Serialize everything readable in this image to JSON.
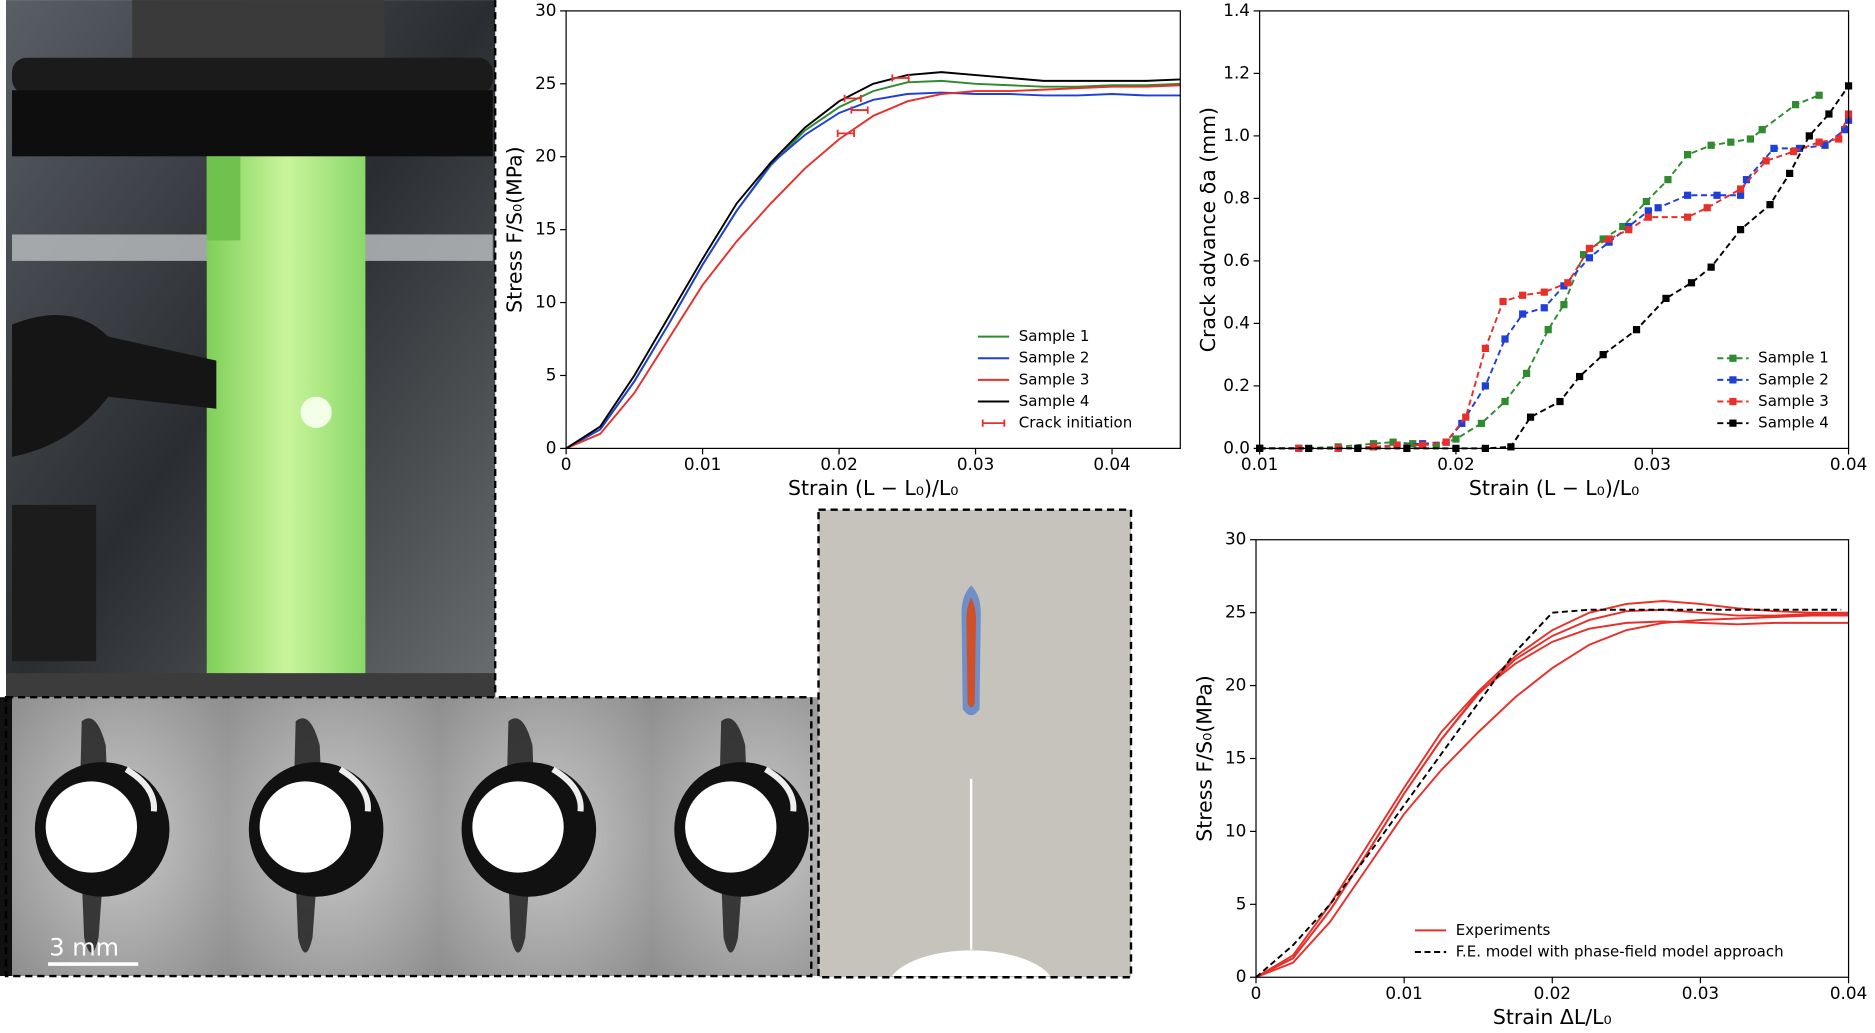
{
  "chart_data": [
    {
      "type": "line",
      "x_label": "Strain (L − L₀)/L₀",
      "y_label": "Stress F/S₀(MPa)",
      "x": [
        0,
        0.0025,
        0.005,
        0.0075,
        0.01,
        0.0125,
        0.015,
        0.0175,
        0.02,
        0.0225,
        0.025,
        0.0275,
        0.03,
        0.0325,
        0.035,
        0.0375,
        0.04,
        0.0425,
        0.045
      ],
      "series": [
        {
          "name": "Sample 1",
          "color": "#2e8b2e",
          "values": [
            0,
            1.3,
            4.6,
            8.5,
            12.6,
            16.3,
            19.4,
            21.8,
            23.4,
            24.5,
            25.1,
            25.2,
            25.0,
            24.9,
            24.8,
            24.8,
            24.9,
            24.9,
            25.0
          ]
        },
        {
          "name": "Sample 2",
          "color": "#1f3fd8",
          "values": [
            0,
            1.3,
            4.6,
            8.5,
            12.6,
            16.3,
            19.5,
            21.5,
            23.0,
            23.9,
            24.3,
            24.4,
            24.3,
            24.3,
            24.2,
            24.2,
            24.3,
            24.2,
            24.2
          ]
        },
        {
          "name": "Sample 3",
          "color": "#e8302a",
          "values": [
            0,
            1.0,
            3.8,
            7.5,
            11.2,
            14.2,
            16.8,
            19.2,
            21.2,
            22.8,
            23.8,
            24.3,
            24.5,
            24.5,
            24.6,
            24.7,
            24.8,
            24.8,
            24.9
          ]
        },
        {
          "name": "Sample 4",
          "color": "#000000",
          "values": [
            0,
            1.5,
            5,
            9,
            13,
            16.8,
            19.6,
            22,
            23.8,
            25,
            25.6,
            25.8,
            25.6,
            25.4,
            25.2,
            25.2,
            25.2,
            25.2,
            25.3
          ]
        }
      ],
      "errorbars": {
        "name": "Crack initiation",
        "color": "#e8302a",
        "x": [
          0.021,
          0.0245,
          0.0215,
          0.0205
        ],
        "values": [
          24.0,
          25.4,
          23.2,
          21.6
        ],
        "xerr": [
          0.0006,
          0.0006,
          0.0006,
          0.0006
        ]
      },
      "xlim": [
        0,
        0.045
      ],
      "xticks": [
        0,
        0.01,
        0.02,
        0.03,
        0.04
      ],
      "ylim": [
        0,
        30
      ],
      "yticks": [
        0,
        5,
        10,
        15,
        20,
        25,
        30
      ],
      "legend": "lower right"
    },
    {
      "type": "line",
      "x_label": "Strain (L − L₀)/L₀",
      "y_label": "Crack advance δa (mm)",
      "series": [
        {
          "name": "Sample 1",
          "color": "#2e8b2e",
          "linestyle": "dashed",
          "marker": "s",
          "x": [
            0.01,
            0.012,
            0.014,
            0.0158,
            0.0168,
            0.0178,
            0.019,
            0.02,
            0.0213,
            0.0225,
            0.0236,
            0.0247,
            0.0255,
            0.0265,
            0.0275,
            0.0285,
            0.0297,
            0.0308,
            0.0318,
            0.033,
            0.034,
            0.035,
            0.0356,
            0.0373,
            0.0385
          ],
          "values": [
            0,
            0,
            0.005,
            0.015,
            0.02,
            0.015,
            0.01,
            0.03,
            0.08,
            0.15,
            0.24,
            0.38,
            0.46,
            0.62,
            0.67,
            0.71,
            0.79,
            0.86,
            0.94,
            0.97,
            0.98,
            0.99,
            1.02,
            1.1,
            1.13
          ]
        },
        {
          "name": "Sample 2",
          "color": "#1f3fd8",
          "linestyle": "dashed",
          "marker": "s",
          "x": [
            0.01,
            0.012,
            0.014,
            0.0158,
            0.017,
            0.0183,
            0.0195,
            0.0203,
            0.0215,
            0.0225,
            0.0234,
            0.0245,
            0.0255,
            0.0268,
            0.0278,
            0.0288,
            0.0298,
            0.0303,
            0.0318,
            0.0333,
            0.0345,
            0.0348,
            0.0362,
            0.0375,
            0.0388,
            0.0398,
            0.04
          ],
          "values": [
            0,
            0,
            0,
            0.005,
            0.01,
            0.015,
            0.02,
            0.08,
            0.2,
            0.35,
            0.43,
            0.45,
            0.52,
            0.61,
            0.66,
            0.71,
            0.76,
            0.77,
            0.81,
            0.81,
            0.81,
            0.86,
            0.96,
            0.96,
            0.97,
            1.02,
            1.05
          ]
        },
        {
          "name": "Sample 3",
          "color": "#e8302a",
          "linestyle": "dashed",
          "marker": "s",
          "x": [
            0.01,
            0.012,
            0.014,
            0.0158,
            0.017,
            0.0183,
            0.0195,
            0.0205,
            0.0215,
            0.0224,
            0.0234,
            0.0245,
            0.0257,
            0.0268,
            0.0278,
            0.0288,
            0.0298,
            0.0318,
            0.0328,
            0.0345,
            0.0358,
            0.0372,
            0.0385,
            0.0395,
            0.04
          ],
          "values": [
            0,
            0,
            0,
            0.005,
            0.01,
            0.01,
            0.02,
            0.1,
            0.32,
            0.47,
            0.49,
            0.5,
            0.53,
            0.64,
            0.67,
            0.7,
            0.74,
            0.74,
            0.77,
            0.83,
            0.92,
            0.95,
            0.98,
            0.99,
            1.07
          ]
        },
        {
          "name": "Sample 4",
          "color": "#000000",
          "linestyle": "dashed",
          "marker": "s",
          "x": [
            0.01,
            0.0125,
            0.015,
            0.0175,
            0.02,
            0.0215,
            0.0228,
            0.0238,
            0.0253,
            0.0263,
            0.0275,
            0.0292,
            0.0307,
            0.032,
            0.033,
            0.0345,
            0.036,
            0.037,
            0.038,
            0.039,
            0.04
          ],
          "values": [
            0,
            0,
            0,
            0,
            0,
            0,
            0.005,
            0.1,
            0.15,
            0.23,
            0.3,
            0.38,
            0.48,
            0.53,
            0.58,
            0.7,
            0.78,
            0.88,
            1.0,
            1.07,
            1.16
          ]
        }
      ],
      "xlim": [
        0.01,
        0.04
      ],
      "xticks": [
        0.01,
        0.02,
        0.03,
        0.04
      ],
      "ylim": [
        0,
        1.4
      ],
      "yticks": [
        {
          "value": 0,
          "label": "0.0"
        },
        0.2,
        0.4,
        0.6,
        0.8,
        {
          "value": 1,
          "label": "1.0"
        },
        1.2,
        1.4
      ],
      "legend": "lower right"
    },
    {
      "type": "line",
      "x_label": "Strain ΔL/L₀",
      "y_label": "Stress F/S₀(MPa)",
      "series": [
        {
          "name": "Experiments",
          "color": "#e8302a",
          "x": [
            0,
            0.0025,
            0.005,
            0.0075,
            0.01,
            0.0125,
            0.015,
            0.0175,
            0.02,
            0.0225,
            0.025,
            0.0275,
            0.03,
            0.0325,
            0.035,
            0.0375,
            0.04
          ],
          "values": [
            [
              0,
              1.5,
              5,
              9,
              13,
              16.8,
              19.6,
              22,
              23.8,
              25,
              25.6,
              25.8,
              25.6,
              25.3,
              25.1,
              25.0,
              25.0
            ],
            [
              0,
              1.3,
              4.6,
              8.5,
              12.6,
              16.3,
              19.4,
              21.8,
              23.4,
              24.5,
              25.1,
              25.2,
              25.0,
              24.8,
              24.8,
              24.9,
              24.9
            ],
            [
              0,
              1.3,
              4.6,
              8.5,
              12.6,
              16.3,
              19.5,
              21.5,
              23.0,
              23.9,
              24.3,
              24.4,
              24.3,
              24.2,
              24.3,
              24.3,
              24.3
            ],
            [
              0,
              1.0,
              3.8,
              7.5,
              11.2,
              14.2,
              16.8,
              19.2,
              21.2,
              22.8,
              23.8,
              24.3,
              24.5,
              24.6,
              24.7,
              24.8,
              24.8
            ]
          ]
        },
        {
          "name": "F.E. model with phase-field model approach",
          "color": "#000000",
          "linestyle": "dashed",
          "x": [
            0,
            0.0025,
            0.005,
            0.0075,
            0.01,
            0.0125,
            0.015,
            0.0175,
            0.02,
            0.0225,
            0.025,
            0.03,
            0.035,
            0.0395
          ],
          "values": [
            0,
            2.2,
            5,
            8.3,
            11.8,
            15.3,
            18.8,
            22.3,
            25,
            25.2,
            25.2,
            25.2,
            25.2,
            25.2
          ]
        }
      ],
      "xlim": [
        0,
        0.04
      ],
      "xticks": [
        0,
        0.01,
        0.02,
        0.03,
        0.04
      ],
      "ylim": [
        0,
        30
      ],
      "yticks": [
        0,
        5,
        10,
        15,
        20,
        25,
        30
      ],
      "legend": "lower right"
    }
  ],
  "images": {
    "scale_bar_label": "3 mm"
  }
}
